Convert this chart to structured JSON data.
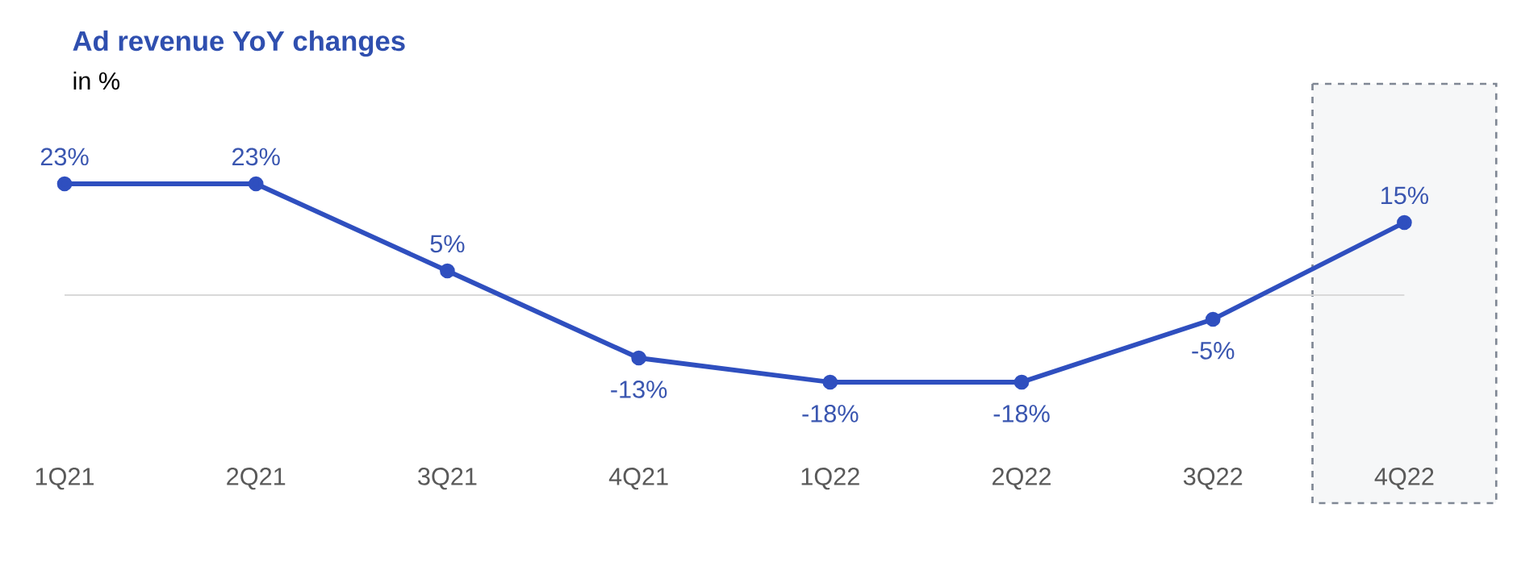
{
  "chart_data": {
    "type": "line",
    "title": "Ad revenue YoY changes",
    "subtitle": "in %",
    "categories": [
      "1Q21",
      "2Q21",
      "3Q21",
      "4Q21",
      "1Q22",
      "2Q22",
      "3Q22",
      "4Q22"
    ],
    "values": [
      23,
      23,
      5,
      -13,
      -18,
      -18,
      -5,
      15
    ],
    "value_labels": [
      "23%",
      "23%",
      "5%",
      "-13%",
      "-18%",
      "-18%",
      "-5%",
      "15%"
    ],
    "color": "#2f4fbf",
    "marker": "circle",
    "line_style": "solid",
    "ref_lines": [
      {
        "axis": "y",
        "value": 0,
        "color": "#d9d9d9"
      }
    ],
    "bands": [
      {
        "axis": "x",
        "from": "4Q22",
        "to": "4Q22",
        "color": "#7f8794"
      }
    ]
  }
}
